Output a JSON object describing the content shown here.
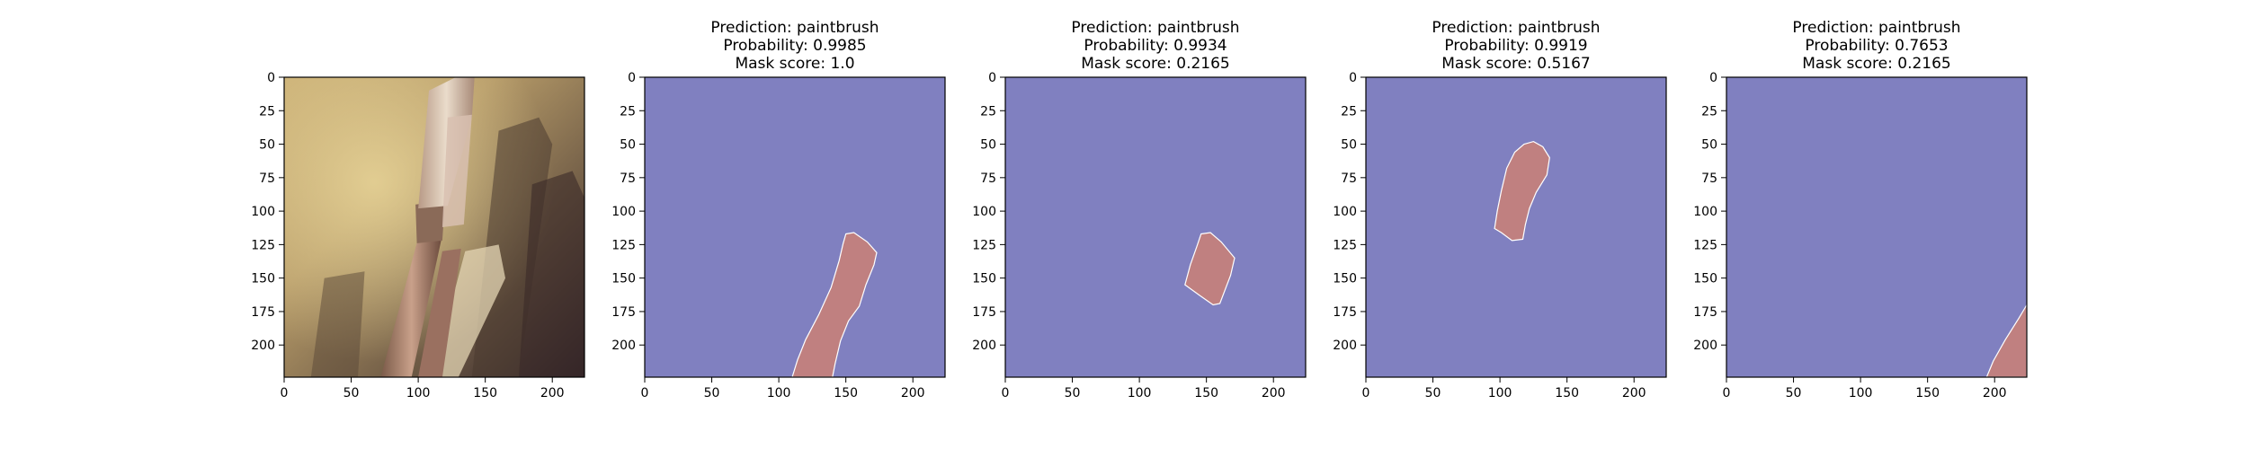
{
  "chart_data": [
    {
      "type": "image",
      "title": [],
      "xticks": [
        "0",
        "50",
        "100",
        "150",
        "200"
      ],
      "yticks": [
        "0",
        "25",
        "50",
        "75",
        "100",
        "125",
        "150",
        "175",
        "200"
      ],
      "xlim": [
        0,
        224
      ],
      "ylim": [
        224,
        0
      ],
      "content": "paintbrush-photo"
    },
    {
      "type": "mask",
      "title": [
        "Prediction: paintbrush",
        "Probability: 0.9985",
        "Mask score: 1.0"
      ],
      "xticks": [
        "0",
        "50",
        "100",
        "150",
        "200"
      ],
      "yticks": [
        "0",
        "25",
        "50",
        "75",
        "100",
        "125",
        "150",
        "175",
        "200"
      ],
      "xlim": [
        0,
        224
      ],
      "ylim": [
        224,
        0
      ],
      "background_color": "#8080c0",
      "mask_color": "#c08080",
      "mask_polygon": [
        [
          150,
          117
        ],
        [
          156,
          116
        ],
        [
          166,
          123
        ],
        [
          173,
          131
        ],
        [
          171,
          140
        ],
        [
          165,
          155
        ],
        [
          160,
          171
        ],
        [
          152,
          182
        ],
        [
          146,
          197
        ],
        [
          142,
          214
        ],
        [
          140,
          224
        ],
        [
          110,
          224
        ],
        [
          114,
          211
        ],
        [
          120,
          196
        ],
        [
          130,
          177
        ],
        [
          139,
          157
        ],
        [
          145,
          137
        ],
        [
          148,
          124
        ]
      ]
    },
    {
      "type": "mask",
      "title": [
        "Prediction: paintbrush",
        "Probability: 0.9934",
        "Mask score: 0.2165"
      ],
      "xticks": [
        "0",
        "50",
        "100",
        "150",
        "200"
      ],
      "yticks": [
        "0",
        "25",
        "50",
        "75",
        "100",
        "125",
        "150",
        "175",
        "200"
      ],
      "xlim": [
        0,
        224
      ],
      "ylim": [
        224,
        0
      ],
      "background_color": "#8080c0",
      "mask_color": "#c08080",
      "mask_polygon": [
        [
          146,
          117
        ],
        [
          153,
          116
        ],
        [
          161,
          123
        ],
        [
          171,
          135
        ],
        [
          168,
          148
        ],
        [
          160,
          169
        ],
        [
          155,
          170
        ],
        [
          145,
          163
        ],
        [
          134,
          155
        ],
        [
          138,
          140
        ],
        [
          143,
          126
        ]
      ]
    },
    {
      "type": "mask",
      "title": [
        "Prediction: paintbrush",
        "Probability: 0.9919",
        "Mask score: 0.5167"
      ],
      "xticks": [
        "0",
        "50",
        "100",
        "150",
        "200"
      ],
      "yticks": [
        "0",
        "25",
        "50",
        "75",
        "100",
        "125",
        "150",
        "175",
        "200"
      ],
      "xlim": [
        0,
        224
      ],
      "ylim": [
        224,
        0
      ],
      "background_color": "#8080c0",
      "mask_color": "#c08080",
      "mask_polygon": [
        [
          118,
          50
        ],
        [
          125,
          48
        ],
        [
          132,
          52
        ],
        [
          137,
          60
        ],
        [
          135,
          73
        ],
        [
          127,
          86
        ],
        [
          122,
          98
        ],
        [
          119,
          110
        ],
        [
          117,
          121
        ],
        [
          109,
          122
        ],
        [
          101,
          116
        ],
        [
          96,
          113
        ],
        [
          98,
          100
        ],
        [
          101,
          85
        ],
        [
          105,
          68
        ],
        [
          111,
          56
        ]
      ]
    },
    {
      "type": "mask",
      "title": [
        "Prediction: paintbrush",
        "Probability: 0.7653",
        "Mask score: 0.2165"
      ],
      "xticks": [
        "0",
        "50",
        "100",
        "150",
        "200"
      ],
      "yticks": [
        "0",
        "25",
        "50",
        "75",
        "100",
        "125",
        "150",
        "175",
        "200"
      ],
      "xlim": [
        0,
        224
      ],
      "ylim": [
        224,
        0
      ],
      "background_color": "#8080c0",
      "mask_color": "#c08080",
      "mask_polygon": [
        [
          224,
          170
        ],
        [
          224,
          224
        ],
        [
          194,
          224
        ],
        [
          199,
          212
        ],
        [
          208,
          196
        ],
        [
          218,
          180
        ]
      ]
    }
  ]
}
